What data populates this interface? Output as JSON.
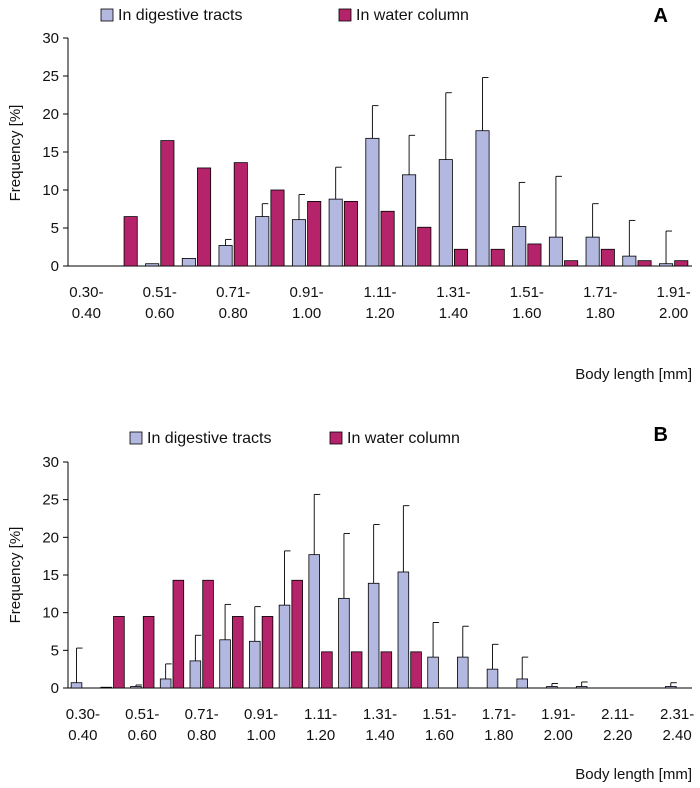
{
  "colors": {
    "digestive": "#b3b8e0",
    "water": "#b5246a",
    "axis": "#000000"
  },
  "chart_data": [
    {
      "panel": "A",
      "type": "bar",
      "ylabel": "Frequency [%]",
      "xlabel": "Body length [mm]",
      "ylim": [
        0,
        30
      ],
      "yticks": [
        0,
        5,
        10,
        15,
        20,
        25,
        30
      ],
      "tick_labels": [
        [
          "0.30-",
          "0.40"
        ],
        [
          "0.51-",
          "0.60"
        ],
        [
          "0.71-",
          "0.80"
        ],
        [
          "0.91-",
          "1.00"
        ],
        [
          "1.11-",
          "1.20"
        ],
        [
          "1.31-",
          "1.40"
        ],
        [
          "1.51-",
          "1.60"
        ],
        [
          "1.71-",
          "1.80"
        ],
        [
          "1.91-",
          "2.00"
        ]
      ],
      "legend": "top",
      "series": [
        {
          "name": "In digestive tracts",
          "color": "#b3b8e0",
          "values": [
            0,
            0,
            0.3,
            1.0,
            2.7,
            6.5,
            6.1,
            8.8,
            16.8,
            12.0,
            14.0,
            17.8,
            5.2,
            3.8,
            3.8,
            1.3,
            0.3
          ],
          "errors": [
            0,
            0,
            0,
            0,
            0.8,
            1.7,
            3.3,
            4.2,
            4.3,
            5.2,
            8.8,
            7.0,
            5.8,
            8.0,
            4.4,
            4.7,
            4.3
          ]
        },
        {
          "name": "In water column",
          "color": "#b5246a",
          "values": [
            0,
            6.5,
            16.5,
            12.9,
            13.6,
            10.0,
            8.5,
            8.5,
            7.2,
            5.1,
            2.2,
            2.2,
            2.9,
            0.7,
            2.2,
            0.7,
            0.7
          ]
        }
      ]
    },
    {
      "panel": "B",
      "type": "bar",
      "ylabel": "Frequency [%]",
      "xlabel": "Body length [mm]",
      "ylim": [
        0,
        30
      ],
      "yticks": [
        0,
        5,
        10,
        15,
        20,
        25,
        30
      ],
      "tick_labels": [
        [
          "0.30-",
          "0.40"
        ],
        [
          "0.51-",
          "0.60"
        ],
        [
          "0.71-",
          "0.80"
        ],
        [
          "0.91-",
          "1.00"
        ],
        [
          "1.11-",
          "1.20"
        ],
        [
          "1.31-",
          "1.40"
        ],
        [
          "1.51-",
          "1.60"
        ],
        [
          "1.71-",
          "1.80"
        ],
        [
          "1.91-",
          "2.00"
        ],
        [
          "2.11-",
          "2.20"
        ],
        [
          "2.31-",
          "2.40"
        ]
      ],
      "legend": "top",
      "series": [
        {
          "name": "In digestive tracts",
          "color": "#b3b8e0",
          "values": [
            0.7,
            0.1,
            0.2,
            1.2,
            3.6,
            6.4,
            6.2,
            11.0,
            17.7,
            11.9,
            13.9,
            15.4,
            4.1,
            4.1,
            2.5,
            1.2,
            0.2,
            0.2,
            0,
            0,
            0.2
          ],
          "errors": [
            4.6,
            0,
            0.2,
            2.0,
            3.4,
            4.7,
            4.6,
            7.2,
            8.0,
            8.6,
            7.8,
            8.8,
            4.6,
            4.1,
            3.3,
            2.9,
            0.4,
            0.6,
            0,
            0,
            0.5
          ]
        },
        {
          "name": "In water column",
          "color": "#b5246a",
          "values": [
            0,
            9.5,
            9.5,
            14.3,
            14.3,
            9.5,
            9.5,
            14.3,
            4.8,
            4.8,
            4.8,
            4.8,
            0,
            0,
            0,
            0,
            0,
            0,
            0,
            0,
            0
          ]
        }
      ]
    }
  ]
}
